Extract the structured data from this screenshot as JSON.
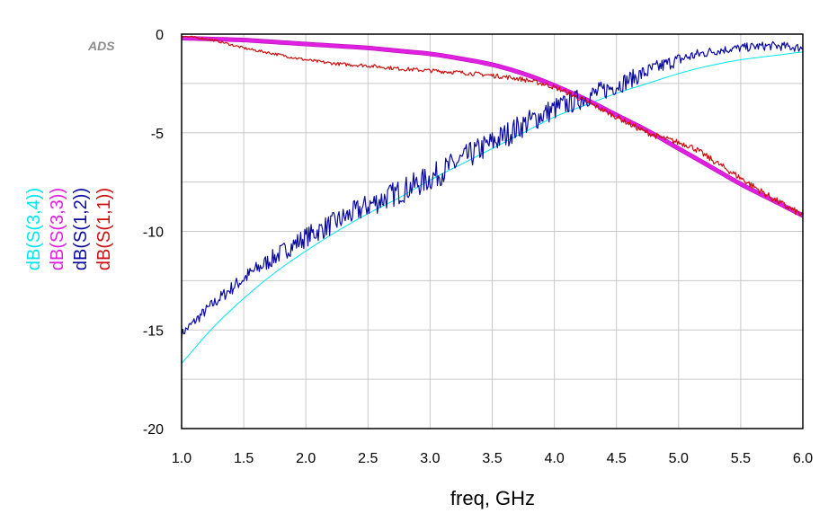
{
  "chart_data": {
    "type": "line",
    "watermark": "ADS",
    "xlabel": "freq, GHz",
    "ylabel": "",
    "xlim": [
      1.0,
      6.0
    ],
    "ylim": [
      -20,
      0
    ],
    "xticks": [
      1.0,
      1.5,
      2.0,
      2.5,
      3.0,
      3.5,
      4.0,
      4.5,
      5.0,
      5.5,
      6.0
    ],
    "xtick_labels": [
      "1.0",
      "1.5",
      "2.0",
      "2.5",
      "3.0",
      "3.5",
      "4.0",
      "4.5",
      "5.0",
      "5.5",
      "6.0"
    ],
    "yticks": [
      0,
      -5,
      -10,
      -15,
      -20
    ],
    "ytick_labels": [
      "0",
      "-5",
      "-10",
      "-15",
      "-20"
    ],
    "grid": true,
    "legend": "left-vertical",
    "series": [
      {
        "name": "dB(S(3,4))",
        "color": "#00e5ee",
        "x": [
          1.0,
          1.25,
          1.5,
          1.75,
          2.0,
          2.25,
          2.5,
          2.75,
          3.0,
          3.25,
          3.5,
          3.75,
          4.0,
          4.25,
          4.5,
          4.75,
          5.0,
          5.25,
          5.5,
          5.75,
          6.0
        ],
        "y": [
          -16.7,
          -14.9,
          -13.4,
          -12.1,
          -11.0,
          -10.0,
          -9.1,
          -8.3,
          -7.4,
          -6.6,
          -5.8,
          -5.0,
          -4.2,
          -3.6,
          -3.0,
          -2.5,
          -2.0,
          -1.6,
          -1.3,
          -1.1,
          -0.9
        ]
      },
      {
        "name": "dB(S(3,3))",
        "color": "#e020e0",
        "x": [
          1.0,
          1.25,
          1.5,
          1.75,
          2.0,
          2.25,
          2.5,
          2.75,
          3.0,
          3.25,
          3.5,
          3.75,
          4.0,
          4.25,
          4.5,
          4.75,
          5.0,
          5.25,
          5.5,
          5.75,
          6.0
        ],
        "y": [
          -0.2,
          -0.25,
          -0.3,
          -0.4,
          -0.5,
          -0.6,
          -0.7,
          -0.85,
          -1.0,
          -1.25,
          -1.55,
          -2.0,
          -2.6,
          -3.3,
          -4.1,
          -4.9,
          -5.8,
          -6.7,
          -7.6,
          -8.4,
          -9.2
        ]
      },
      {
        "name": "dB(S(1,2))",
        "color": "#0a0aa0",
        "x": [
          1.0,
          1.25,
          1.5,
          1.75,
          2.0,
          2.25,
          2.5,
          2.75,
          3.0,
          3.25,
          3.5,
          3.75,
          4.0,
          4.25,
          4.5,
          4.75,
          5.0,
          5.25,
          5.5,
          5.75,
          6.0
        ],
        "y": [
          -15.2,
          -13.7,
          -12.4,
          -11.3,
          -10.3,
          -9.5,
          -8.7,
          -8.0,
          -7.3,
          -6.4,
          -5.5,
          -4.6,
          -3.8,
          -3.2,
          -2.6,
          -1.9,
          -1.3,
          -0.9,
          -0.7,
          -0.6,
          -0.7
        ]
      },
      {
        "name": "dB(S(1,1))",
        "color": "#cc1010",
        "x": [
          1.0,
          1.25,
          1.5,
          1.75,
          2.0,
          2.25,
          2.5,
          2.75,
          3.0,
          3.25,
          3.5,
          3.75,
          4.0,
          4.25,
          4.5,
          4.75,
          5.0,
          5.1,
          5.25,
          5.5,
          5.75,
          6.0
        ],
        "y": [
          -0.1,
          -0.3,
          -0.7,
          -1.0,
          -1.3,
          -1.5,
          -1.6,
          -1.75,
          -1.85,
          -1.95,
          -2.1,
          -2.3,
          -2.7,
          -3.4,
          -4.2,
          -5.0,
          -5.5,
          -5.7,
          -6.3,
          -7.3,
          -8.3,
          -9.2
        ]
      }
    ]
  }
}
